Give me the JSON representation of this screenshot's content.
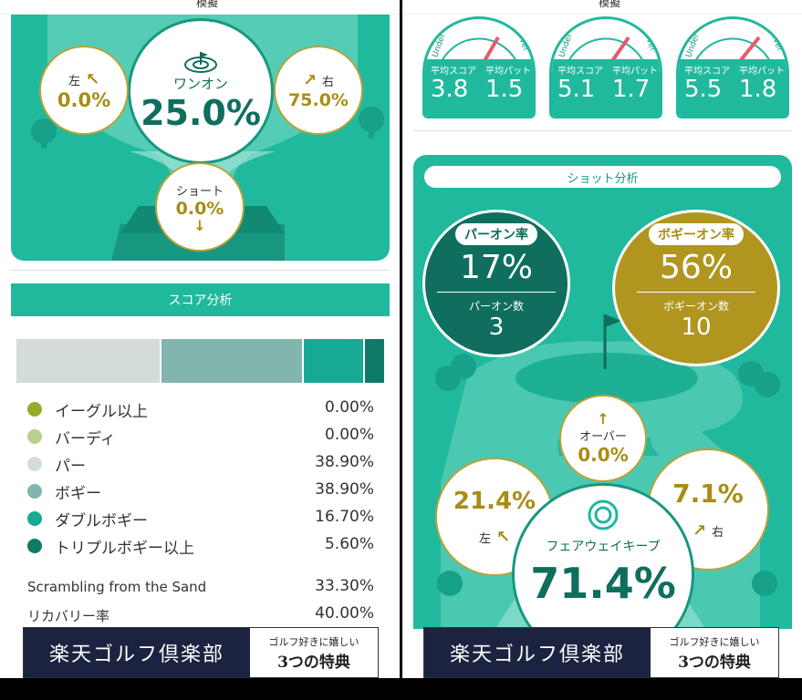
{
  "left": {
    "header_title": "模擬",
    "fairway": {
      "center_label": "ワンオン",
      "center_value": "25.0%",
      "left_label": "左",
      "left_value": "0.0%",
      "right_label": "右",
      "right_value": "75.0%",
      "short_label": "ショート",
      "short_value": "0.0%"
    },
    "score_section_title": "スコア分析",
    "score_bar": [
      {
        "pct": 38.9,
        "color": "#d3dbdb"
      },
      {
        "pct": 38.9,
        "color": "#82b5ae"
      },
      {
        "pct": 16.7,
        "color": "#18a994"
      },
      {
        "pct": 5.6,
        "color": "#0f7a68"
      }
    ],
    "score_items": [
      {
        "label": "イーグル以上",
        "value": "0.00%",
        "color": "#93ad2a"
      },
      {
        "label": "バーディ",
        "value": "0.00%",
        "color": "#b9d08e"
      },
      {
        "label": "パー",
        "value": "38.90%",
        "color": "#d3dbdb"
      },
      {
        "label": "ボギー",
        "value": "38.90%",
        "color": "#82b5ae"
      },
      {
        "label": "ダブルボギー",
        "value": "16.70%",
        "color": "#18a994"
      },
      {
        "label": "トリプルボギー以上",
        "value": "5.60%",
        "color": "#0f7a68"
      }
    ],
    "extra_items": [
      {
        "label": "Scrambling from the Sand",
        "value": "33.30%"
      },
      {
        "label": "リカバリー率",
        "value": "40.00%"
      }
    ],
    "banner": {
      "main": "楽天ゴルフ倶楽部",
      "sub_top": "ゴルフ好きに嬉しい",
      "sub_bottom": "3つの特典"
    }
  },
  "right": {
    "header_title": "模擬",
    "gauges": [
      {
        "under": "Under",
        "over": "Over",
        "score_label": "平均スコア",
        "putt_label": "平均パット",
        "score": "3.8",
        "putt": "1.5"
      },
      {
        "under": "Under",
        "over": "Over",
        "score_label": "平均スコア",
        "putt_label": "平均パット",
        "score": "5.1",
        "putt": "1.7"
      },
      {
        "under": "Under",
        "over": "Over",
        "score_label": "平均スコア",
        "putt_label": "平均パット",
        "score": "5.5",
        "putt": "1.8"
      }
    ],
    "shot_section_title": "ショット分析",
    "par_on": {
      "label": "パーオン率",
      "value": "17%",
      "count_label": "パーオン数",
      "count": "3"
    },
    "bogey_on": {
      "label": "ボギーオン率",
      "value": "56%",
      "count_label": "ボギーオン数",
      "count": "10"
    },
    "over": {
      "label": "オーバー",
      "value": "0.0%"
    },
    "left_value": "21.4%",
    "left_label": "左",
    "right_value": "7.1%",
    "right_label": "右",
    "fairway_label": "フェアウェイキープ",
    "fairway_value": "71.4%",
    "banner": {
      "main": "楽天ゴルフ倶楽部",
      "sub_top": "ゴルフ好きに嬉しい",
      "sub_bottom": "3つの特典"
    }
  }
}
